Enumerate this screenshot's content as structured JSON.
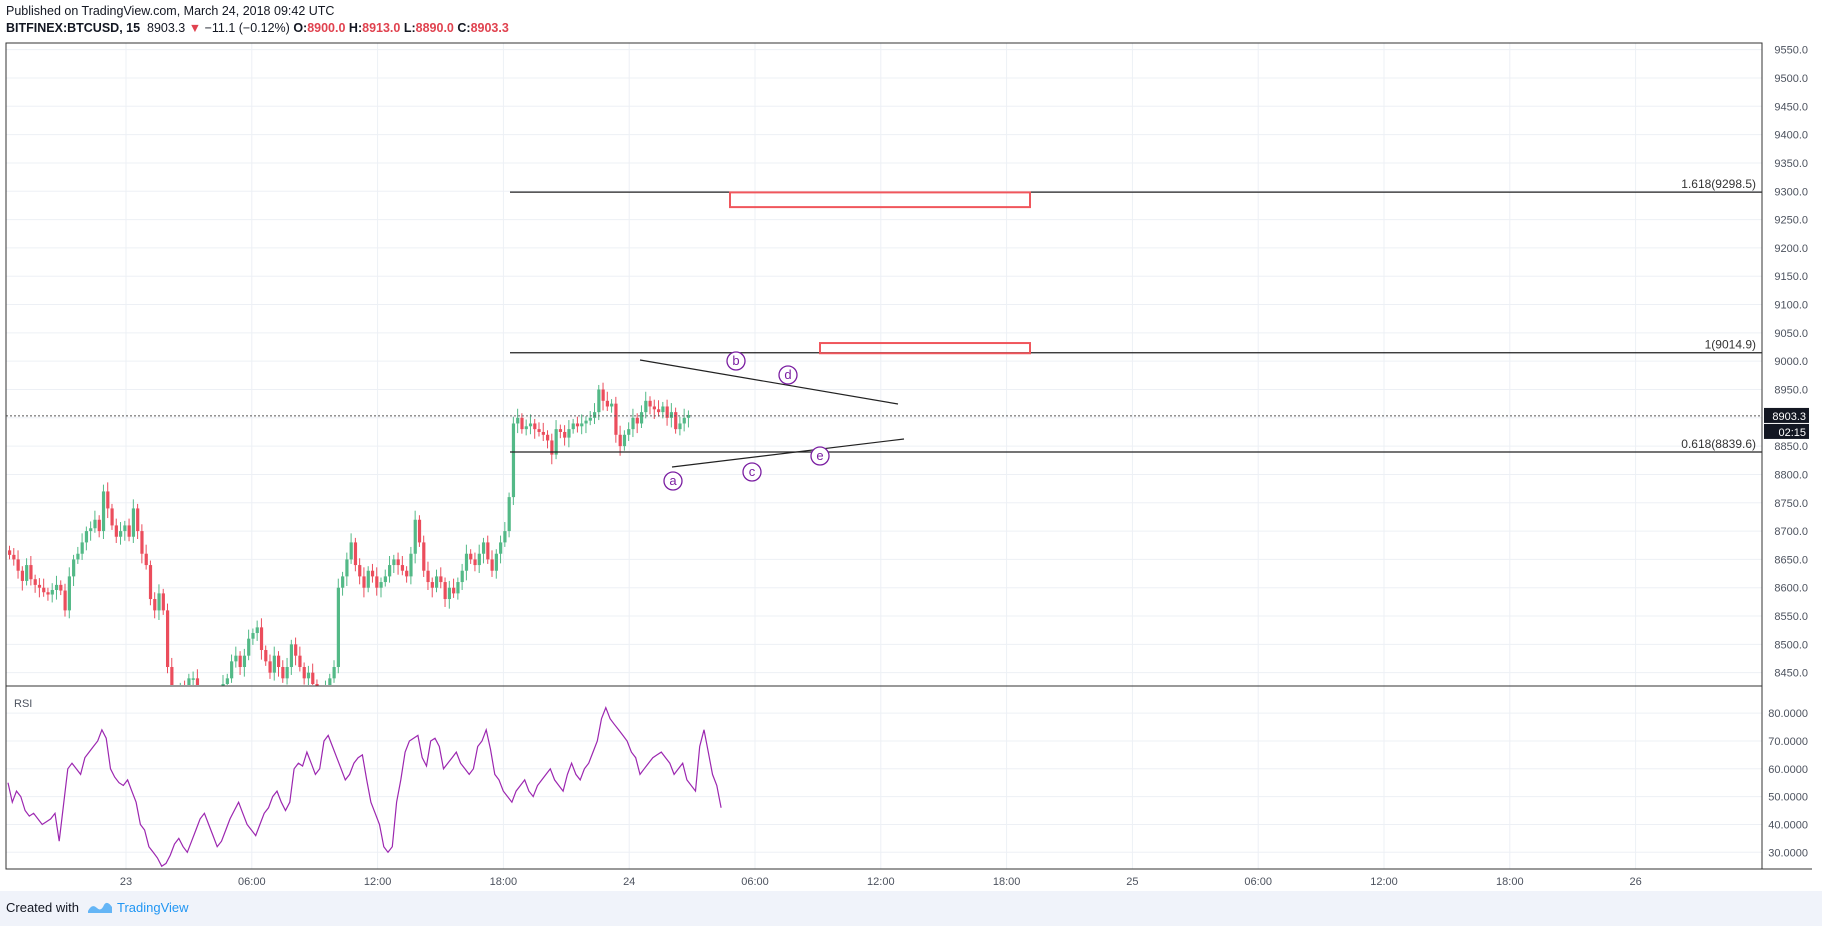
{
  "header": {
    "published": "Published on TradingView.com, March 24, 2018 09:42 UTC",
    "symbol": "BITFINEX:BTCUSD, 15",
    "price": "8903.3",
    "change": "−11.1 (−0.12%)",
    "o_label": "O:",
    "o_value": "8900.0",
    "h_label": "H:",
    "h_value": "8913.0",
    "l_label": "L:",
    "l_value": "8890.0",
    "c_label": "C:",
    "c_value": "8903.3"
  },
  "footer": {
    "created_with": "Created with",
    "brand": "TradingView"
  },
  "colors": {
    "up": "#53b987",
    "down": "#eb4d5c",
    "rsi": "#9c27b0",
    "wave": "#7b1fa2",
    "target_box": "#f0565c",
    "grid": "#edf0f5"
  },
  "chart_data": [
    {
      "type": "candlestick",
      "symbol": "BITFINEX:BTCUSD",
      "interval": "15",
      "x_tick_labels": [
        "23",
        "06:00",
        "12:00",
        "18:00",
        "24",
        "06:00",
        "12:00",
        "18:00",
        "25",
        "06:00",
        "12:00",
        "18:00",
        "26"
      ],
      "y_tick_labels": [
        "9550.0",
        "9500.0",
        "9450.0",
        "9400.0",
        "9350.0",
        "9300.0",
        "9250.0",
        "9200.0",
        "9150.0",
        "9100.0",
        "9050.0",
        "9000.0",
        "8950.0",
        "8900.0",
        "8850.0",
        "8800.0",
        "8750.0",
        "8700.0",
        "8650.0",
        "8600.0",
        "8550.0",
        "8500.0",
        "8450.0"
      ],
      "ylim": [
        8430,
        9560
      ],
      "last_price_label": "8903.3",
      "countdown_label": "02:15",
      "grid": true,
      "fib_levels": [
        {
          "label": "1.618(9298.5)",
          "value": 9298.5
        },
        {
          "label": "1(9014.9)",
          "value": 9014.9
        },
        {
          "label": "0.618(8839.6)",
          "value": 8839.6
        }
      ],
      "target_zones": [
        {
          "from": 9272,
          "to": 9298
        },
        {
          "from": 9014,
          "to": 9032
        }
      ],
      "wave_labels": [
        "a",
        "b",
        "c",
        "d",
        "e"
      ],
      "price_series": [
        8658,
        8650,
        8630,
        8612,
        8640,
        8615,
        8605,
        8600,
        8592,
        8588,
        8596,
        8605,
        8595,
        8560,
        8620,
        8650,
        8660,
        8680,
        8700,
        8705,
        8720,
        8700,
        8770,
        8740,
        8710,
        8690,
        8700,
        8710,
        8690,
        8740,
        8700,
        8660,
        8640,
        8580,
        8560,
        8590,
        8560,
        8460,
        8420,
        8410,
        8420,
        8400,
        8440,
        8440,
        8420,
        8410,
        8400,
        8400,
        8380,
        8400,
        8430,
        8440,
        8470,
        8480,
        8460,
        8480,
        8510,
        8520,
        8530,
        8490,
        8470,
        8450,
        8480,
        8460,
        8440,
        8460,
        8500,
        8480,
        8460,
        8440,
        8450,
        8430,
        8400,
        8380,
        8420,
        8440,
        8460,
        8600,
        8620,
        8650,
        8680,
        8640,
        8620,
        8600,
        8630,
        8620,
        8600,
        8610,
        8620,
        8640,
        8650,
        8640,
        8630,
        8620,
        8660,
        8720,
        8680,
        8630,
        8610,
        8600,
        8620,
        8610,
        8580,
        8600,
        8590,
        8610,
        8630,
        8660,
        8650,
        8640,
        8660,
        8680,
        8650,
        8630,
        8660,
        8680,
        8700,
        8760,
        8890,
        8900,
        8880,
        8885,
        8890,
        8880,
        8875,
        8870,
        8860,
        8835,
        8880,
        8875,
        8865,
        8880,
        8890,
        8885,
        8890,
        8895,
        8900,
        8910,
        8950,
        8930,
        8920,
        8925,
        8870,
        8850,
        8870,
        8880,
        8900,
        8890,
        8910,
        8930,
        8920,
        8915,
        8910,
        8920,
        8900,
        8910,
        8880,
        8890,
        8900,
        8905
      ]
    },
    {
      "type": "line",
      "title": "RSI",
      "y_tick_labels": [
        "80.0000",
        "70.0000",
        "60.0000",
        "50.0000",
        "40.0000",
        "30.0000"
      ],
      "ylim": [
        24,
        84
      ],
      "values": [
        55,
        48,
        52,
        50,
        45,
        43,
        44,
        42,
        40,
        41,
        42,
        44,
        34,
        47,
        60,
        62,
        60,
        58,
        64,
        66,
        68,
        70,
        74,
        71,
        60,
        57,
        55,
        54,
        56,
        52,
        48,
        40,
        38,
        32,
        30,
        28,
        25,
        26,
        29,
        33,
        35,
        32,
        30,
        34,
        38,
        42,
        44,
        40,
        36,
        32,
        34,
        38,
        42,
        45,
        48,
        44,
        40,
        38,
        36,
        40,
        44,
        46,
        50,
        52,
        48,
        45,
        48,
        60,
        62,
        61,
        66,
        62,
        58,
        60,
        70,
        72,
        68,
        64,
        60,
        56,
        58,
        62,
        64,
        65,
        56,
        48,
        44,
        40,
        32,
        30,
        32,
        48,
        56,
        66,
        70,
        71,
        72,
        64,
        61,
        70,
        71,
        68,
        60,
        62,
        64,
        66,
        62,
        60,
        58,
        60,
        68,
        70,
        74,
        67,
        58,
        56,
        52,
        50,
        48,
        52,
        54,
        56,
        52,
        50,
        54,
        56,
        58,
        60,
        56,
        54,
        52,
        58,
        62,
        58,
        56,
        60,
        62,
        66,
        70,
        78,
        82,
        78,
        76,
        74,
        72,
        70,
        66,
        64,
        58,
        60,
        62,
        64,
        65,
        66,
        64,
        62,
        58,
        60,
        62,
        56,
        54,
        52,
        68,
        74,
        66,
        58,
        54,
        46
      ]
    }
  ]
}
